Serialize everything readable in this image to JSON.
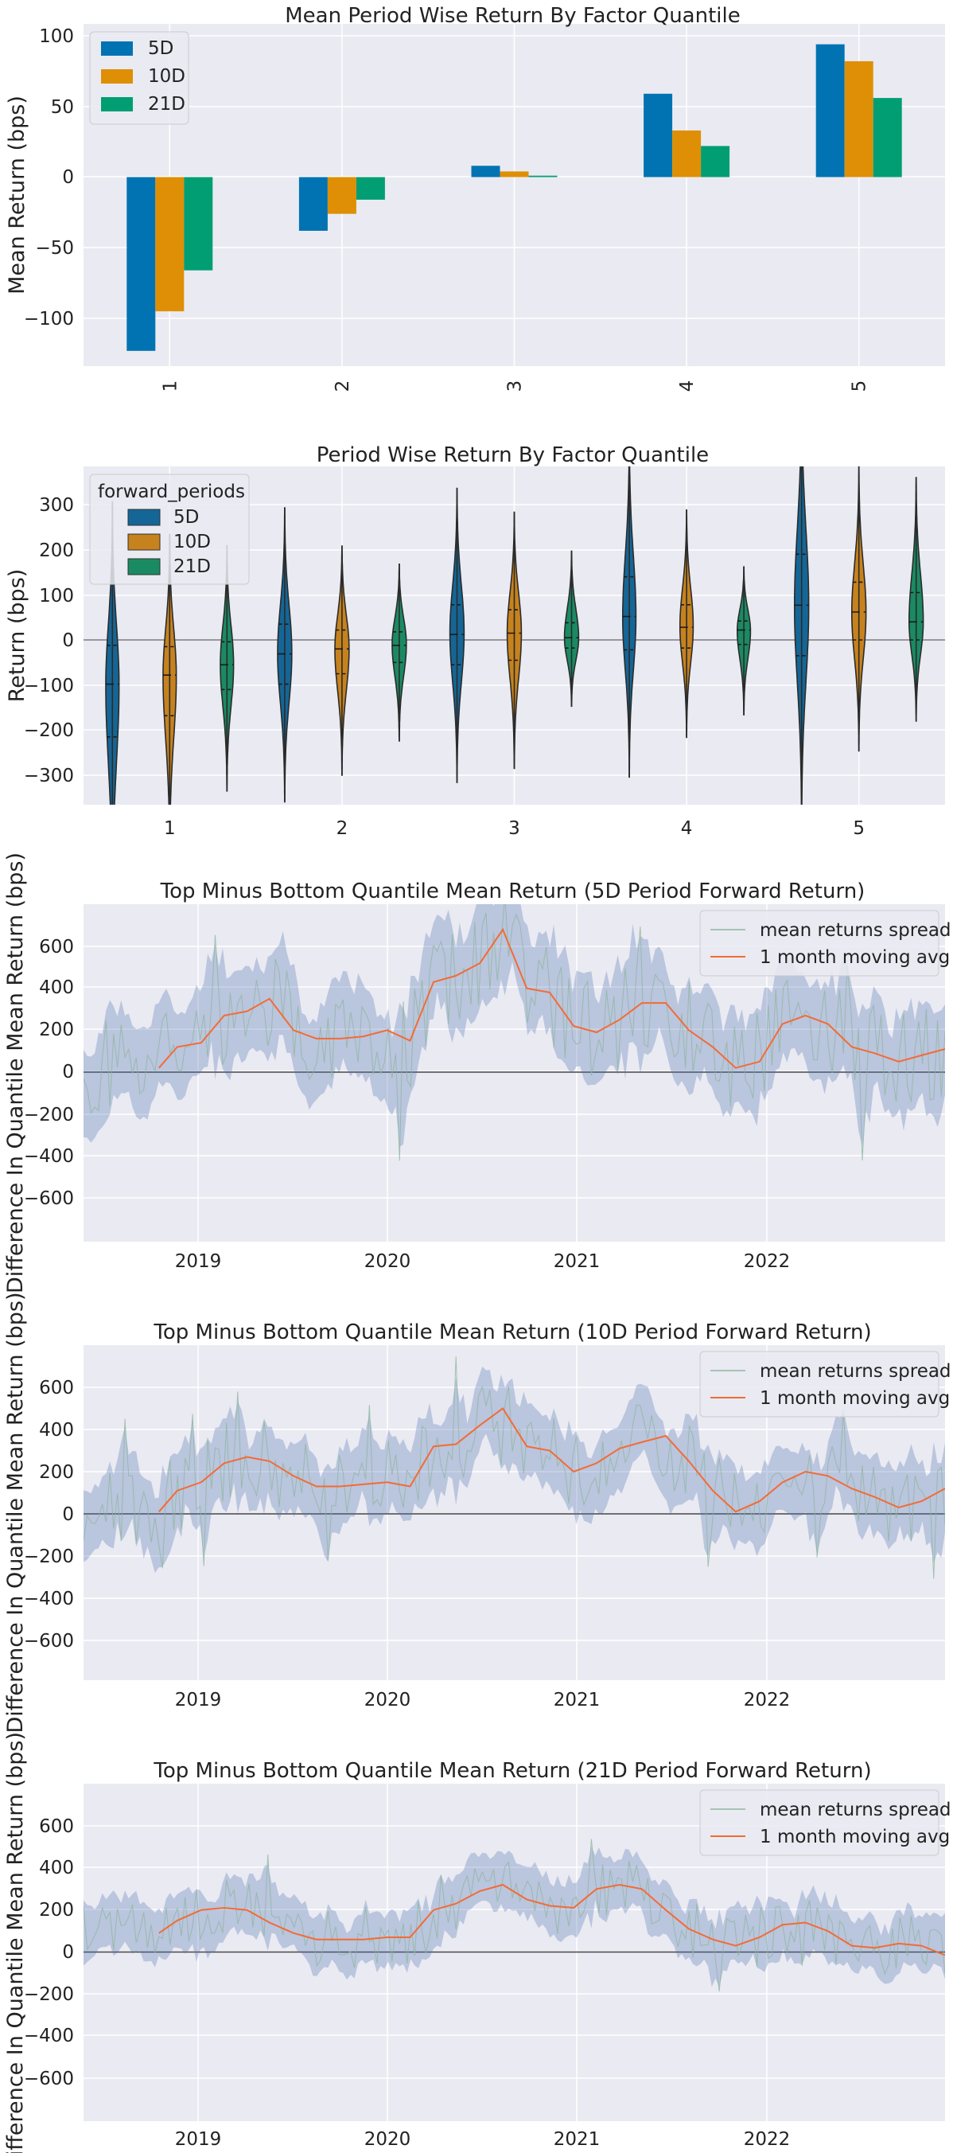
{
  "chart_data": [
    {
      "type": "bar",
      "title": "Mean Period Wise Return By Factor Quantile",
      "xlabel": "",
      "ylabel": "Mean Return (bps)",
      "ylim": [
        -135,
        100
      ],
      "yticks": [
        "100",
        "50",
        "0",
        "−50",
        "−100"
      ],
      "categories": [
        "1",
        "2",
        "3",
        "4",
        "5"
      ],
      "legend_position": "top-left",
      "series": [
        {
          "name": "5D",
          "color": "#0173b2",
          "values": [
            -123,
            -38,
            8,
            59,
            94
          ]
        },
        {
          "name": "10D",
          "color": "#de8f05",
          "values": [
            -95,
            -26,
            4,
            33,
            82
          ]
        },
        {
          "name": "21D",
          "color": "#029e73",
          "values": [
            -66,
            -16,
            1,
            22,
            56
          ]
        }
      ]
    },
    {
      "type": "violin",
      "title": "Period Wise Return By Factor Quantile",
      "xlabel": "",
      "ylabel": "Return (bps)",
      "ylim": [
        -360,
        380
      ],
      "yticks": [
        "300",
        "200",
        "100",
        "0",
        "−100",
        "−200",
        "−300"
      ],
      "categories": [
        "1",
        "2",
        "3",
        "4",
        "5"
      ],
      "legend_title": "forward_periods",
      "legend_position": "top-left",
      "series": [
        {
          "name": "5D",
          "color": "#146696",
          "median": [
            -98,
            -31,
            12,
            52,
            77
          ],
          "q1": [
            -215,
            -98,
            -55,
            -22,
            -35
          ],
          "q3": [
            -12,
            35,
            78,
            140,
            190
          ],
          "max_width": [
            0.14,
            0.15,
            0.15,
            0.14,
            0.15
          ],
          "peak": [
            -100,
            -30,
            15,
            50,
            75
          ]
        },
        {
          "name": "10D",
          "color": "#c6821d",
          "median": [
            -78,
            -20,
            15,
            28,
            62
          ],
          "q1": [
            -168,
            -75,
            -45,
            -18,
            0
          ],
          "q3": [
            -15,
            22,
            67,
            78,
            128
          ],
          "max_width": [
            0.14,
            0.15,
            0.15,
            0.14,
            0.15
          ],
          "peak": [
            -80,
            -20,
            15,
            30,
            60
          ]
        },
        {
          "name": "21D",
          "color": "#1a8a63",
          "median": [
            -55,
            -12,
            5,
            22,
            40
          ],
          "q1": [
            -110,
            -50,
            -18,
            -10,
            0
          ],
          "q3": [
            -4,
            18,
            38,
            42,
            105
          ],
          "max_width": [
            0.14,
            0.15,
            0.15,
            0.14,
            0.15
          ],
          "peak": [
            -55,
            -10,
            5,
            20,
            40
          ]
        }
      ]
    },
    {
      "type": "line",
      "title": "Top Minus Bottom Quantile Mean Return (5D Period Forward Return)",
      "xlabel": "",
      "ylabel": "Difference In Quantile Mean Return (bps)",
      "xlim": [
        "2018-05-15",
        "2022-12-31"
      ],
      "ylim": [
        -800,
        800
      ],
      "yticks": [
        "600",
        "400",
        "200",
        "0",
        "−200",
        "−400",
        "−600"
      ],
      "xticks": [
        "2019",
        "2020",
        "2021",
        "2022"
      ],
      "legend_position": "top-right",
      "series": [
        {
          "name": "mean returns spread",
          "color": "#8fb69e",
          "line_width": 1,
          "spread": 240
        },
        {
          "name": "1 month moving avg",
          "color": "#f36b34",
          "line_width": 2,
          "x": [
            "2018-10-10",
            "2018-11-15",
            "2019-01-01",
            "2019-02-15",
            "2019-04-01",
            "2019-05-15",
            "2019-07-01",
            "2019-08-15",
            "2019-10-01",
            "2019-11-15",
            "2020-01-01",
            "2020-02-15",
            "2020-04-01",
            "2020-05-15",
            "2020-07-01",
            "2020-08-15",
            "2020-10-01",
            "2020-11-15",
            "2021-01-01",
            "2021-02-15",
            "2021-04-01",
            "2021-05-15",
            "2021-07-01",
            "2021-08-15",
            "2021-10-01",
            "2021-11-15",
            "2022-01-01",
            "2022-02-15",
            "2022-04-01",
            "2022-05-15",
            "2022-07-01",
            "2022-08-15",
            "2022-10-01",
            "2022-11-15",
            "2022-12-31"
          ],
          "values": [
            20,
            120,
            140,
            270,
            290,
            350,
            200,
            160,
            160,
            170,
            200,
            150,
            430,
            460,
            520,
            680,
            400,
            380,
            220,
            190,
            250,
            330,
            330,
            200,
            120,
            20,
            50,
            230,
            270,
            230,
            120,
            90,
            50,
            80,
            110
          ]
        }
      ]
    },
    {
      "type": "line",
      "title": "Top Minus Bottom Quantile Mean Return (10D Period Forward Return)",
      "xlabel": "",
      "ylabel": "Difference In Quantile Mean Return (bps)",
      "xlim": [
        "2018-05-15",
        "2022-12-31"
      ],
      "ylim": [
        -800,
        800
      ],
      "yticks": [
        "600",
        "400",
        "200",
        "0",
        "−200",
        "−400",
        "−600"
      ],
      "xticks": [
        "2019",
        "2020",
        "2021",
        "2022"
      ],
      "legend_position": "top-right",
      "series": [
        {
          "name": "mean returns spread",
          "color": "#8fb69e",
          "line_width": 1,
          "spread": 190
        },
        {
          "name": "1 month moving avg",
          "color": "#f36b34",
          "line_width": 2,
          "x": [
            "2018-10-10",
            "2018-11-15",
            "2019-01-01",
            "2019-02-15",
            "2019-04-01",
            "2019-05-15",
            "2019-07-01",
            "2019-08-15",
            "2019-10-01",
            "2019-11-15",
            "2020-01-01",
            "2020-02-15",
            "2020-04-01",
            "2020-05-15",
            "2020-07-01",
            "2020-08-15",
            "2020-10-01",
            "2020-11-15",
            "2021-01-01",
            "2021-02-15",
            "2021-04-01",
            "2021-05-15",
            "2021-07-01",
            "2021-08-15",
            "2021-10-01",
            "2021-11-15",
            "2022-01-01",
            "2022-02-15",
            "2022-04-01",
            "2022-05-15",
            "2022-07-01",
            "2022-08-15",
            "2022-10-01",
            "2022-11-15",
            "2022-12-31"
          ],
          "values": [
            10,
            110,
            150,
            240,
            270,
            250,
            180,
            130,
            130,
            140,
            150,
            130,
            320,
            330,
            420,
            500,
            320,
            300,
            200,
            240,
            310,
            340,
            370,
            250,
            110,
            10,
            60,
            150,
            200,
            180,
            120,
            80,
            30,
            60,
            120
          ]
        }
      ]
    },
    {
      "type": "line",
      "title": "Top Minus Bottom Quantile Mean Return (21D Period Forward Return)",
      "xlabel": "",
      "ylabel": "Difference In Quantile Mean Return (bps)",
      "xlim": [
        "2018-05-15",
        "2022-12-31"
      ],
      "ylim": [
        -800,
        800
      ],
      "yticks": [
        "600",
        "400",
        "200",
        "0",
        "−200",
        "−400",
        "−600"
      ],
      "xticks": [
        "2019",
        "2020",
        "2021",
        "2022"
      ],
      "legend_position": "top-right",
      "series": [
        {
          "name": "mean returns spread",
          "color": "#8fb69e",
          "line_width": 1,
          "spread": 140
        },
        {
          "name": "1 month moving avg",
          "color": "#f36b34",
          "line_width": 2,
          "x": [
            "2018-10-10",
            "2018-11-15",
            "2019-01-01",
            "2019-02-15",
            "2019-04-01",
            "2019-05-15",
            "2019-07-01",
            "2019-08-15",
            "2019-10-01",
            "2019-11-15",
            "2020-01-01",
            "2020-02-15",
            "2020-04-01",
            "2020-05-15",
            "2020-07-01",
            "2020-08-15",
            "2020-10-01",
            "2020-11-15",
            "2021-01-01",
            "2021-02-15",
            "2021-04-01",
            "2021-05-15",
            "2021-07-01",
            "2021-08-15",
            "2021-10-01",
            "2021-11-15",
            "2022-01-01",
            "2022-02-15",
            "2022-04-01",
            "2022-05-15",
            "2022-07-01",
            "2022-08-15",
            "2022-10-01",
            "2022-11-15",
            "2022-12-31"
          ],
          "values": [
            90,
            150,
            200,
            210,
            200,
            140,
            90,
            60,
            60,
            60,
            70,
            70,
            200,
            230,
            290,
            320,
            250,
            220,
            210,
            300,
            320,
            300,
            200,
            110,
            60,
            30,
            70,
            130,
            140,
            100,
            30,
            20,
            40,
            30,
            -15
          ]
        }
      ]
    }
  ]
}
